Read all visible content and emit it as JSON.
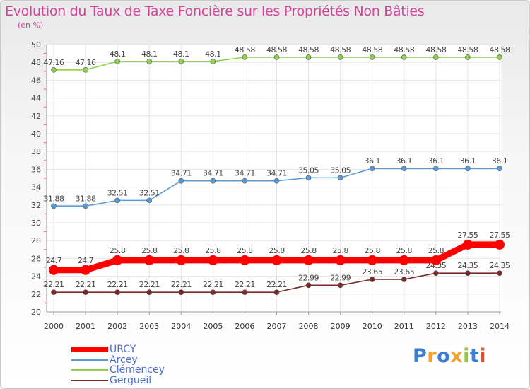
{
  "header": {
    "title": "Evolution du Taux de Taxe Foncière sur les Propriétés Non Bâties",
    "unit": "(en %)"
  },
  "logo": {
    "text": "Proxiti"
  },
  "chart_data": {
    "type": "line",
    "title": "Evolution du Taux de Taxe Foncière sur les Propriétés Non Bâties",
    "ylabel": "(en %)",
    "xlabel": "",
    "ylim": [
      20,
      50
    ],
    "yticks": [
      20,
      22,
      24,
      26,
      28,
      30,
      32,
      34,
      36,
      38,
      40,
      42,
      44,
      46,
      48,
      50
    ],
    "x": [
      "2000",
      "2001",
      "2002",
      "2003",
      "2004",
      "2005",
      "2006",
      "2007",
      "2008",
      "2009",
      "2010",
      "2011",
      "2012",
      "2013",
      "2014"
    ],
    "grid": true,
    "legend_position": "bottom-left",
    "series": [
      {
        "name": "URCY",
        "color": "#ff0000",
        "values": [
          24.7,
          24.7,
          25.8,
          25.8,
          25.8,
          25.8,
          25.8,
          25.8,
          25.8,
          25.8,
          25.8,
          25.8,
          25.8,
          27.55,
          27.55
        ],
        "labels": [
          "24.7",
          "24.7",
          "25.8",
          "25.8",
          "25.8",
          "25.8",
          "25.8",
          "25.8",
          "25.8",
          "25.8",
          "25.8",
          "25.8",
          "25.8",
          "27.55",
          "27.55"
        ]
      },
      {
        "name": "Arcey",
        "color": "#5b9bd5",
        "values": [
          31.88,
          31.88,
          32.51,
          32.51,
          34.71,
          34.71,
          34.71,
          34.71,
          35.05,
          35.05,
          36.1,
          36.1,
          36.1,
          36.1,
          36.1
        ],
        "labels": [
          "31.88",
          "31.88",
          "32.51",
          "32.51",
          "34.71",
          "34.71",
          "34.71",
          "34.71",
          "35.05",
          "35.05",
          "36.1",
          "36.1",
          "36.1",
          "36.1",
          "36.1"
        ]
      },
      {
        "name": "Clémencey",
        "color": "#8fd14f",
        "values": [
          47.16,
          47.16,
          48.1,
          48.1,
          48.1,
          48.1,
          48.58,
          48.58,
          48.58,
          48.58,
          48.58,
          48.58,
          48.58,
          48.58,
          48.58
        ],
        "labels": [
          "47.16",
          "47.16",
          "48.1",
          "48.1",
          "48.1",
          "48.1",
          "48.58",
          "48.58",
          "48.58",
          "48.58",
          "48.58",
          "48.58",
          "48.58",
          "48.58",
          "48.58"
        ]
      },
      {
        "name": "Gergueil",
        "color": "#7a2a2a",
        "values": [
          22.21,
          22.21,
          22.21,
          22.21,
          22.21,
          22.21,
          22.21,
          22.21,
          22.99,
          22.99,
          23.65,
          23.65,
          24.35,
          24.35,
          24.35
        ],
        "labels": [
          "22.21",
          "22.21",
          "22.21",
          "22.21",
          "22.21",
          "22.21",
          "22.21",
          "22.21",
          "22.99",
          "22.99",
          "23.65",
          "23.65",
          "24.35",
          "24.35",
          "24.35"
        ]
      }
    ]
  }
}
